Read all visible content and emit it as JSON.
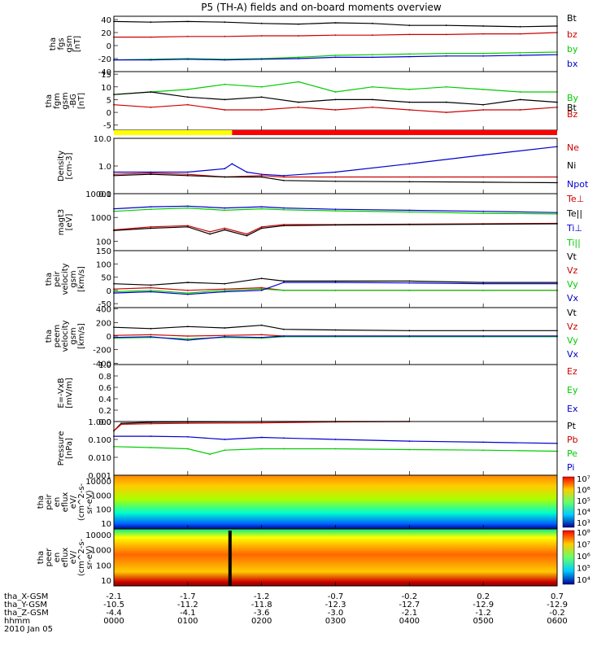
{
  "title": "P5 (TH-A) fields and on-board moments overview",
  "date_label": "2010 Jan 05",
  "chart_data": [
    {
      "type": "line",
      "ylabel": [
        "tha",
        "fgs",
        "gsm",
        "[nT]"
      ],
      "yticks": [
        40,
        20,
        0,
        -20,
        -40
      ],
      "ylim": [
        -40,
        45
      ],
      "legend": [
        {
          "label": "Bt",
          "color": "#000000"
        },
        {
          "label": "bz",
          "color": "#cc0000"
        },
        {
          "label": "by",
          "color": "#00cc00"
        },
        {
          "label": "bx",
          "color": "#0000cc"
        }
      ],
      "series": [
        {
          "label": "Bt",
          "color": "#000000",
          "x": [
            0,
            0.5,
            1,
            1.5,
            2,
            2.5,
            3,
            3.5,
            4,
            4.5,
            5,
            5.5,
            6
          ],
          "values": [
            37,
            36,
            37,
            36,
            34,
            33,
            35,
            34,
            31,
            31,
            30,
            29,
            30
          ]
        },
        {
          "label": "bz",
          "color": "#cc0000",
          "x": [
            0,
            0.5,
            1,
            1.5,
            2,
            2.5,
            3,
            3.5,
            4,
            4.5,
            5,
            5.5,
            6
          ],
          "values": [
            13,
            13,
            14,
            14,
            15,
            15,
            16,
            16,
            17,
            17,
            18,
            18,
            20
          ]
        },
        {
          "label": "by",
          "color": "#00cc00",
          "x": [
            0,
            0.5,
            1,
            1.5,
            2,
            2.5,
            3,
            3.5,
            4,
            4.5,
            5,
            5.5,
            6
          ],
          "values": [
            -22,
            -21,
            -20,
            -21,
            -20,
            -18,
            -15,
            -14,
            -13,
            -12,
            -12,
            -11,
            -10
          ]
        },
        {
          "label": "bx",
          "color": "#0000cc",
          "x": [
            0,
            0.5,
            1,
            1.5,
            2,
            2.5,
            3,
            3.5,
            4,
            4.5,
            5,
            5.5,
            6
          ],
          "values": [
            -22,
            -22,
            -21,
            -22,
            -21,
            -20,
            -18,
            -18,
            -17,
            -16,
            -16,
            -15,
            -14
          ]
        }
      ]
    },
    {
      "type": "line",
      "ylabel": [
        "tha",
        "fgm",
        "gsm",
        "-BG",
        "[nT]"
      ],
      "yticks": [
        15,
        10,
        5,
        0,
        -5
      ],
      "ylim": [
        -7,
        16
      ],
      "legend": [
        {
          "label": "By",
          "color": "#00cc00"
        },
        {
          "label": "Bt",
          "color": "#000000"
        },
        {
          "label": "Bz",
          "color": "#cc0000"
        }
      ],
      "series": [
        {
          "label": "By",
          "color": "#00cc00",
          "x": [
            0,
            0.5,
            1,
            1.5,
            2,
            2.5,
            3,
            3.5,
            4,
            4.5,
            5,
            5.5,
            6
          ],
          "values": [
            7,
            8,
            9,
            11,
            10,
            12,
            8,
            10,
            9,
            10,
            9,
            8,
            8
          ]
        },
        {
          "label": "Bt",
          "color": "#000000",
          "x": [
            0,
            0.5,
            1,
            1.5,
            2,
            2.5,
            3,
            3.5,
            4,
            4.5,
            5,
            5.5,
            6
          ],
          "values": [
            7,
            8,
            6,
            5,
            6,
            4,
            5,
            5,
            4,
            4,
            3,
            5,
            4
          ]
        },
        {
          "label": "Bz",
          "color": "#cc0000",
          "x": [
            0,
            0.5,
            1,
            1.5,
            2,
            2.5,
            3,
            3.5,
            4,
            4.5,
            5,
            5.5,
            6
          ],
          "values": [
            3,
            2,
            3,
            1,
            1,
            2,
            1,
            2,
            1,
            0,
            1,
            1,
            2
          ]
        }
      ]
    },
    {
      "type": "line",
      "scale": "log",
      "ylabel": [
        "Density",
        "[cm-3]"
      ],
      "yticks": [
        "10.0",
        "1.0",
        "0.1"
      ],
      "ylim": [
        0.1,
        10
      ],
      "legend": [
        {
          "label": "Ne",
          "color": "#cc0000"
        },
        {
          "label": "Ni",
          "color": "#000000"
        },
        {
          "label": "Npot",
          "color": "#0000cc"
        }
      ],
      "series": [
        {
          "label": "Ne",
          "color": "#cc0000",
          "x": [
            0,
            0.5,
            1,
            1.5,
            2,
            2.3,
            3,
            4,
            5,
            6
          ],
          "values": [
            0.5,
            0.55,
            0.5,
            0.4,
            0.45,
            0.4,
            0.4,
            0.4,
            0.4,
            0.4
          ]
        },
        {
          "label": "Ni",
          "color": "#000000",
          "x": [
            0,
            0.5,
            1,
            1.5,
            2,
            2.3,
            3,
            4,
            5,
            6
          ],
          "values": [
            0.45,
            0.5,
            0.45,
            0.4,
            0.4,
            0.3,
            0.28,
            0.27,
            0.26,
            0.25
          ]
        },
        {
          "label": "Npot",
          "color": "#0000cc",
          "x": [
            0,
            0.5,
            1,
            1.5,
            1.6,
            1.8,
            2,
            2.3,
            3,
            4,
            5,
            6
          ],
          "values": [
            0.6,
            0.6,
            0.6,
            0.8,
            1.2,
            0.6,
            0.5,
            0.45,
            0.6,
            1.2,
            2.5,
            5
          ]
        }
      ]
    },
    {
      "type": "line",
      "scale": "log",
      "ylabel": [
        "magt3",
        "[eV]"
      ],
      "yticks": [
        "10000",
        "1000",
        "100"
      ],
      "ylim": [
        40,
        10000
      ],
      "legend": [
        {
          "label": "Te⊥",
          "color": "#cc0000"
        },
        {
          "label": "Te||",
          "color": "#000000"
        },
        {
          "label": "Ti⊥",
          "color": "#0000cc"
        },
        {
          "label": "Ti||",
          "color": "#00cc00"
        }
      ],
      "series": [
        {
          "label": "Te⊥",
          "color": "#cc0000",
          "x": [
            0,
            0.5,
            1,
            1.3,
            1.5,
            1.8,
            2,
            2.3,
            3,
            4,
            5,
            6
          ],
          "values": [
            300,
            400,
            450,
            250,
            350,
            200,
            400,
            500,
            500,
            520,
            540,
            560
          ]
        },
        {
          "label": "Te||",
          "color": "#000000",
          "x": [
            0,
            0.5,
            1,
            1.3,
            1.5,
            1.8,
            2,
            2.3,
            3,
            4,
            5,
            6
          ],
          "values": [
            280,
            350,
            400,
            200,
            300,
            170,
            350,
            450,
            480,
            500,
            520,
            540
          ]
        },
        {
          "label": "Ti⊥",
          "color": "#0000cc",
          "x": [
            0,
            0.5,
            1,
            1.5,
            2,
            2.3,
            3,
            4,
            5,
            6
          ],
          "values": [
            2300,
            2800,
            3000,
            2500,
            2800,
            2500,
            2200,
            2000,
            1800,
            1600
          ]
        },
        {
          "label": "Ti||",
          "color": "#00cc00",
          "x": [
            0,
            0.5,
            1,
            1.5,
            2,
            2.3,
            3,
            4,
            5,
            6
          ],
          "values": [
            1800,
            2200,
            2500,
            2000,
            2300,
            2100,
            1900,
            1700,
            1500,
            1400
          ]
        }
      ]
    },
    {
      "type": "line",
      "ylabel": [
        "tha",
        "peir",
        "velocity",
        "gsm",
        "[km/s]"
      ],
      "yticks": [
        150,
        100,
        50,
        0,
        -50
      ],
      "ylim": [
        -65,
        150
      ],
      "legend": [
        {
          "label": "Vt",
          "color": "#000000"
        },
        {
          "label": "Vz",
          "color": "#cc0000"
        },
        {
          "label": "Vy",
          "color": "#00cc00"
        },
        {
          "label": "Vx",
          "color": "#0000cc"
        }
      ],
      "series": [
        {
          "label": "Vt",
          "color": "#000000",
          "x": [
            0,
            0.5,
            1,
            1.5,
            2,
            2.3,
            3,
            4,
            5,
            6
          ],
          "values": [
            25,
            20,
            30,
            25,
            45,
            35,
            35,
            35,
            30,
            30
          ]
        },
        {
          "label": "Vz",
          "color": "#cc0000",
          "x": [
            0,
            0.5,
            1,
            1.5,
            2,
            2.3,
            3,
            4,
            5,
            6
          ],
          "values": [
            5,
            10,
            0,
            5,
            10,
            0,
            0,
            0,
            0,
            0
          ]
        },
        {
          "label": "Vy",
          "color": "#00cc00",
          "x": [
            0,
            0.5,
            1,
            1.5,
            2,
            2.3,
            3,
            4,
            5,
            6
          ],
          "values": [
            -5,
            0,
            -10,
            0,
            5,
            0,
            0,
            0,
            0,
            0
          ]
        },
        {
          "label": "Vx",
          "color": "#0000cc",
          "x": [
            0,
            0.5,
            1,
            1.5,
            2,
            2.3,
            3,
            4,
            5,
            6
          ],
          "values": [
            -10,
            -5,
            -15,
            -5,
            0,
            30,
            30,
            28,
            25,
            25
          ]
        }
      ]
    },
    {
      "type": "line",
      "ylabel": [
        "tha",
        "peem",
        "velocity",
        "gsm",
        "[km/s]"
      ],
      "yticks": [
        400,
        200,
        0,
        -200,
        -400
      ],
      "ylim": [
        -420,
        420
      ],
      "legend": [
        {
          "label": "Vt",
          "color": "#000000"
        },
        {
          "label": "Vz",
          "color": "#cc0000"
        },
        {
          "label": "Vy",
          "color": "#00cc00"
        },
        {
          "label": "Vx",
          "color": "#0000cc"
        }
      ],
      "series": [
        {
          "label": "Vt",
          "color": "#000000",
          "x": [
            0,
            0.5,
            1,
            1.5,
            2,
            2.3,
            3,
            4,
            5,
            6
          ],
          "values": [
            130,
            110,
            140,
            120,
            160,
            100,
            90,
            80,
            80,
            80
          ]
        },
        {
          "label": "Vz",
          "color": "#cc0000",
          "x": [
            0,
            0.5,
            1,
            1.5,
            2,
            2.3,
            3,
            4,
            5,
            6
          ],
          "values": [
            10,
            20,
            0,
            10,
            20,
            0,
            0,
            0,
            0,
            0
          ]
        },
        {
          "label": "Vy",
          "color": "#00cc00",
          "x": [
            0,
            0.5,
            1,
            1.5,
            2,
            2.3,
            3,
            4,
            5,
            6
          ],
          "values": [
            -30,
            -20,
            -40,
            -20,
            -30,
            -10,
            -10,
            -10,
            -10,
            -10
          ]
        },
        {
          "label": "Vx",
          "color": "#0000cc",
          "x": [
            0,
            0.5,
            1,
            1.5,
            2,
            2.3,
            3,
            4,
            5,
            6
          ],
          "values": [
            -20,
            -10,
            -60,
            -10,
            -20,
            0,
            0,
            0,
            0,
            0
          ]
        }
      ]
    },
    {
      "type": "line",
      "ylabel": [
        "E=-VxB",
        "[mV/m]"
      ],
      "yticks": [
        "1.0",
        "0.8",
        "0.6",
        "0.4",
        "0.2",
        "0.0"
      ],
      "ylim": [
        0,
        1
      ],
      "legend": [
        {
          "label": "Ez",
          "color": "#cc0000"
        },
        {
          "label": "Ey",
          "color": "#00cc00"
        },
        {
          "label": "Ex",
          "color": "#0000cc"
        }
      ],
      "series": []
    },
    {
      "type": "line",
      "scale": "log",
      "ylabel": [
        "Pressure",
        "[nPa]"
      ],
      "yticks": [
        "1.000",
        "0.100",
        "0.010",
        "0.001"
      ],
      "ylim": [
        0.001,
        1
      ],
      "legend": [
        {
          "label": "Pt",
          "color": "#000000"
        },
        {
          "label": "Pb",
          "color": "#cc0000"
        },
        {
          "label": "Pe",
          "color": "#00cc00"
        },
        {
          "label": "Pi",
          "color": "#0000cc"
        }
      ],
      "series": [
        {
          "label": "Pt",
          "color": "#000000",
          "x": [
            0,
            0.1,
            0.5,
            1,
            2,
            3,
            4
          ],
          "values": [
            0.3,
            0.8,
            0.9,
            0.95,
            1.0,
            1.05,
            1.1
          ]
        },
        {
          "label": "Pb",
          "color": "#cc0000",
          "x": [
            0,
            0.1,
            0.5,
            1,
            2,
            3,
            4
          ],
          "values": [
            0.3,
            0.7,
            0.75,
            0.8,
            0.85,
            0.95,
            1.05
          ]
        },
        {
          "label": "Pi",
          "color": "#0000cc",
          "x": [
            0,
            0.5,
            1,
            1.5,
            2,
            2.3,
            3,
            4,
            5,
            6
          ],
          "values": [
            0.15,
            0.15,
            0.14,
            0.1,
            0.13,
            0.12,
            0.1,
            0.08,
            0.07,
            0.06
          ]
        },
        {
          "label": "Pe",
          "color": "#00cc00",
          "x": [
            0,
            0.5,
            1,
            1.3,
            1.5,
            2,
            2.3,
            3,
            4,
            5,
            6
          ],
          "values": [
            0.04,
            0.035,
            0.03,
            0.015,
            0.025,
            0.03,
            0.03,
            0.03,
            0.027,
            0.025,
            0.022
          ]
        }
      ]
    },
    {
      "type": "heatmap",
      "ylabel": [
        "tha",
        "peir",
        "en",
        "eflux",
        "eV/",
        "(cm^2-s-",
        "sr-eV)"
      ],
      "yticks": [
        "10000",
        "1000",
        "100",
        "10"
      ],
      "colorbar_ticks": [
        "10⁷",
        "10⁶",
        "10⁵",
        "10⁴",
        "10³"
      ]
    },
    {
      "type": "heatmap",
      "ylabel": [
        "tha",
        "peer",
        "en",
        "eflux",
        "eV/",
        "(cm^2-s-",
        "sr-eV)"
      ],
      "yticks": [
        "10000",
        "1000",
        "100",
        "10"
      ],
      "colorbar_ticks": [
        "10⁸",
        "10⁷",
        "10⁶",
        "10⁵",
        "10⁴"
      ]
    }
  ],
  "xaxis": {
    "row_labels": [
      "tha_X-GSM",
      "tha_Y-GSM",
      "tha_Z-GSM",
      "hhmm"
    ],
    "ticks": [
      {
        "hour": 0,
        "X": "-2.1",
        "Y": "-10.5",
        "Z": "-4.4",
        "hhmm": "0000"
      },
      {
        "hour": 1,
        "X": "-1.7",
        "Y": "-11.2",
        "Z": "-4.1",
        "hhmm": "0100"
      },
      {
        "hour": 2,
        "X": "-1.2",
        "Y": "-11.8",
        "Z": "-3.6",
        "hhmm": "0200"
      },
      {
        "hour": 3,
        "X": "-0.7",
        "Y": "-12.3",
        "Z": "-3.0",
        "hhmm": "0300"
      },
      {
        "hour": 4,
        "X": "-0.2",
        "Y": "-12.7",
        "Z": "-2.1",
        "hhmm": "0400"
      },
      {
        "hour": 5,
        "X": "0.2",
        "Y": "-12.9",
        "Z": "-1.2",
        "hhmm": "0500"
      },
      {
        "hour": 6,
        "X": "0.7",
        "Y": "-12.9",
        "Z": "-0.2",
        "hhmm": "0600"
      }
    ]
  },
  "mode_bar": {
    "segments": [
      {
        "from_hour": 0,
        "to_hour": 1.6,
        "color": "#ffff00"
      },
      {
        "from_hour": 1.6,
        "to_hour": 6,
        "color": "#ff0000"
      }
    ]
  }
}
